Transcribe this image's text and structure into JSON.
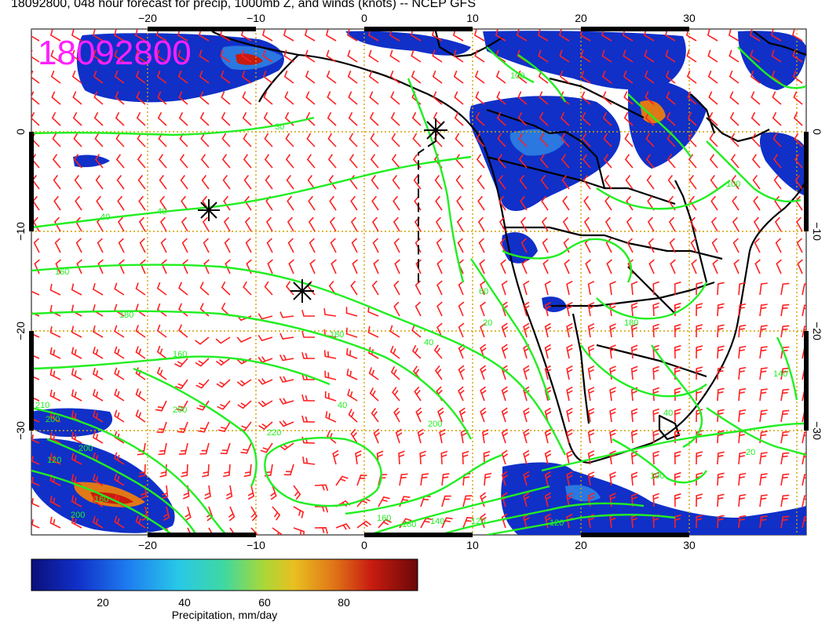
{
  "title": "18092800, 048 hour forecast for precip, 1000mb Z, and winds (knots) -- NCEP GFS",
  "stamp": "18092800",
  "x_ticks": [
    "−20",
    "−10",
    "0",
    "10",
    "20",
    "30"
  ],
  "y_ticks": [
    "0",
    "−10",
    "−20",
    "−30"
  ],
  "contour_labels": [
    "40",
    "40",
    "30",
    "160",
    "160",
    "180",
    "180",
    "200",
    "200",
    "200",
    "200",
    "220",
    "210",
    "160",
    "160",
    "140",
    "120",
    "120",
    "100",
    "100",
    "100",
    "120",
    "140",
    "20",
    "60",
    "20",
    "40",
    "40",
    "40",
    "160",
    "180",
    "200"
  ],
  "colorbar": {
    "label": "Precipitation, mm/day",
    "ticks": [
      "20",
      "40",
      "60",
      "80"
    ],
    "colors": [
      "#0c0f7a",
      "#1030c8",
      "#1e7cf0",
      "#28c8e8",
      "#40d8a0",
      "#a8d838",
      "#e8c020",
      "#e07818",
      "#c81c10",
      "#6a0808"
    ]
  },
  "colors": {
    "wind_barb": "#ff2020",
    "contour": "#22ee22",
    "stamp": "#ff20ff",
    "grid": "#d4a000"
  }
}
